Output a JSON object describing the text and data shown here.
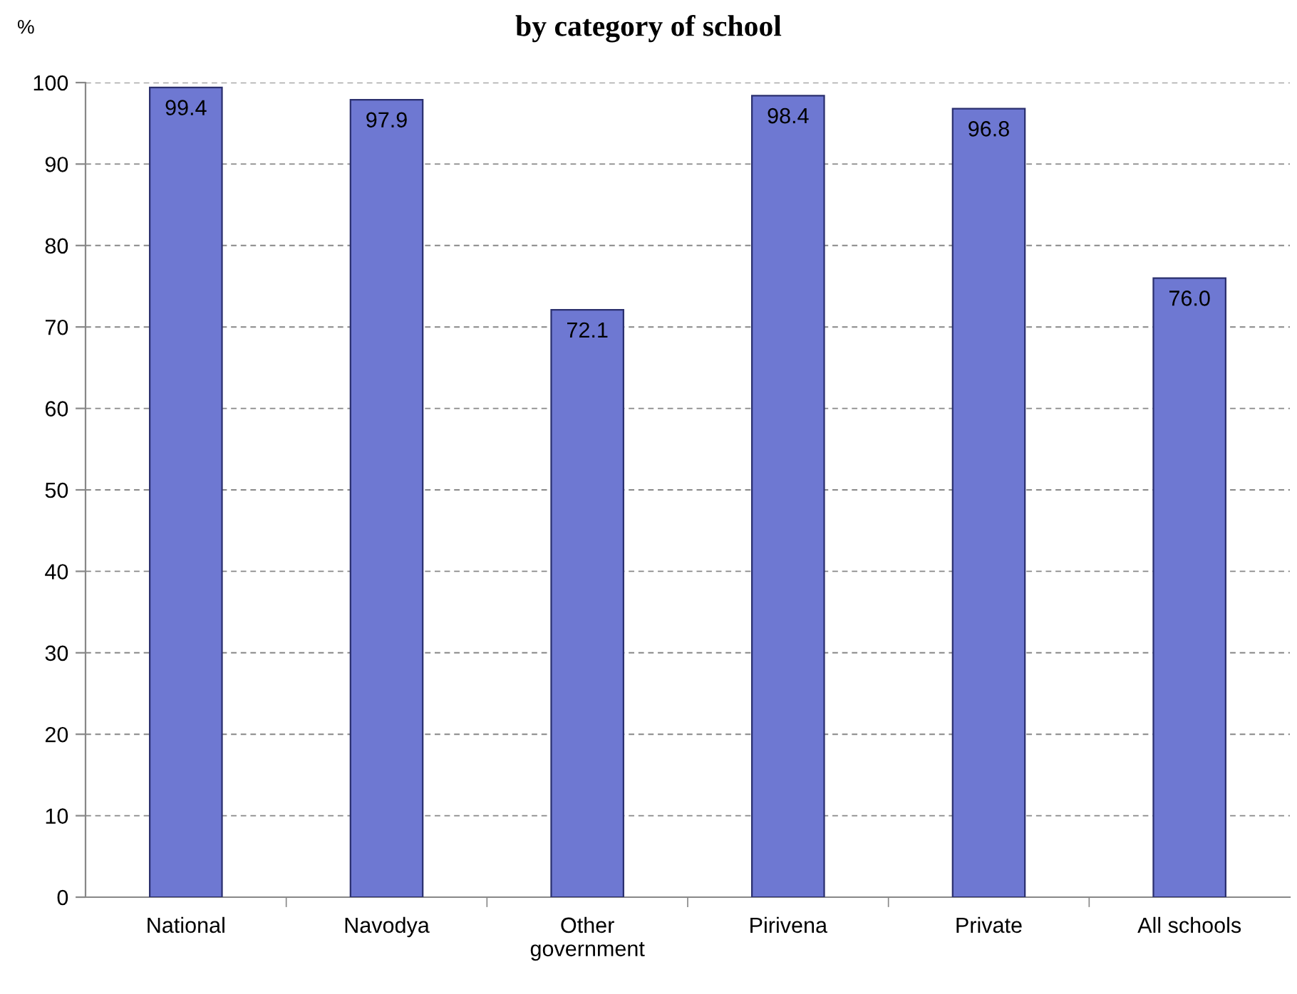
{
  "chart_data": {
    "type": "bar",
    "title": "by category of school",
    "ylabel": "%",
    "categories": [
      "National",
      "Navodya",
      "Other\ngovernment",
      "Pirivena",
      "Private",
      "All schools"
    ],
    "values": [
      99.4,
      97.9,
      72.1,
      98.4,
      96.8,
      76.0
    ],
    "color": "#6e78d2",
    "ylim": [
      0,
      100
    ],
    "yticks": [
      0,
      10,
      20,
      30,
      40,
      50,
      60,
      70,
      80,
      90,
      100
    ],
    "value_labels": [
      "99.4",
      "97.9",
      "72.1",
      "98.4",
      "96.8",
      "76.0"
    ],
    "grid": "y",
    "line_style": "dashed"
  }
}
